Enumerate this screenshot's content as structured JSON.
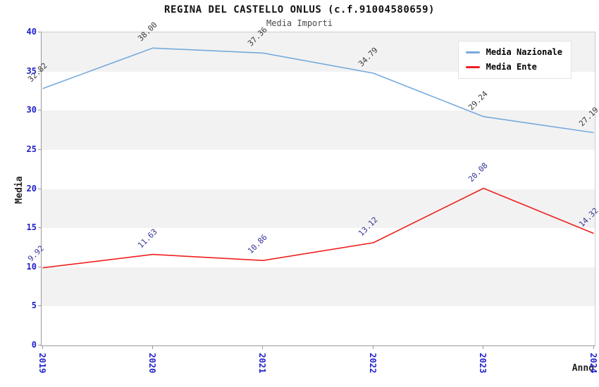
{
  "chart_data": {
    "type": "line",
    "title": "REGINA DEL CASTELLO ONLUS (c.f.91004580659)",
    "subtitle": "Media Importi",
    "xlabel": "Anno",
    "ylabel": "Media",
    "categories": [
      "2019",
      "2020",
      "2021",
      "2022",
      "2023",
      "2024"
    ],
    "series": [
      {
        "name": "Media Nazionale",
        "color": "#76aadd",
        "label_color": "#3a3a3a",
        "values": [
          32.82,
          38.0,
          37.36,
          34.79,
          29.24,
          27.19
        ]
      },
      {
        "name": "Media Ente",
        "color": "#ee2020",
        "label_color": "#333399",
        "values": [
          9.92,
          11.63,
          10.86,
          13.12,
          20.08,
          14.32
        ]
      }
    ],
    "ylim": [
      0,
      40
    ],
    "ytick_step": 5,
    "grid": "horizontal-bands",
    "legend_position": "top-right",
    "colors": {
      "tick_label": "#2020cc",
      "band_gray": "#f2f2f2",
      "band_white": "#ffffff",
      "axis": "#999999",
      "plot_border": "#cccccc"
    }
  }
}
